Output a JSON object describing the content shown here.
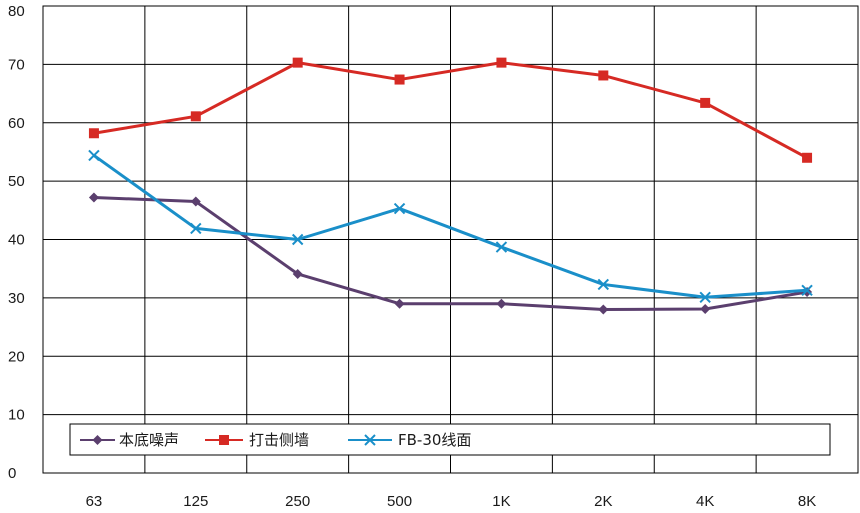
{
  "chart_data": {
    "type": "line",
    "title": "",
    "xlabel": "",
    "ylabel": "",
    "categories": [
      "63",
      "125",
      "250",
      "500",
      "1K",
      "2K",
      "4K",
      "8K"
    ],
    "yticks": [
      "0",
      "10",
      "20",
      "30",
      "40",
      "50",
      "60",
      "70",
      "80"
    ],
    "ylim": [
      0,
      80
    ],
    "grid": true,
    "legend_position": "bottom",
    "series": [
      {
        "name": "本底噪声",
        "color": "#5b3f6e",
        "marker": "diamond",
        "values": [
          47.2,
          46.5,
          34.1,
          29.0,
          29.0,
          28.0,
          28.1,
          31.0
        ]
      },
      {
        "name": "打击侧墙",
        "color": "#d62a24",
        "marker": "square",
        "values": [
          58.2,
          61.1,
          70.3,
          67.4,
          70.3,
          68.1,
          63.4,
          54.0
        ]
      },
      {
        "name": "FB-30线面",
        "color": "#1a8fc9",
        "marker": "x",
        "values": [
          54.4,
          41.9,
          40.0,
          45.3,
          38.7,
          32.3,
          30.1,
          31.3
        ]
      }
    ]
  }
}
